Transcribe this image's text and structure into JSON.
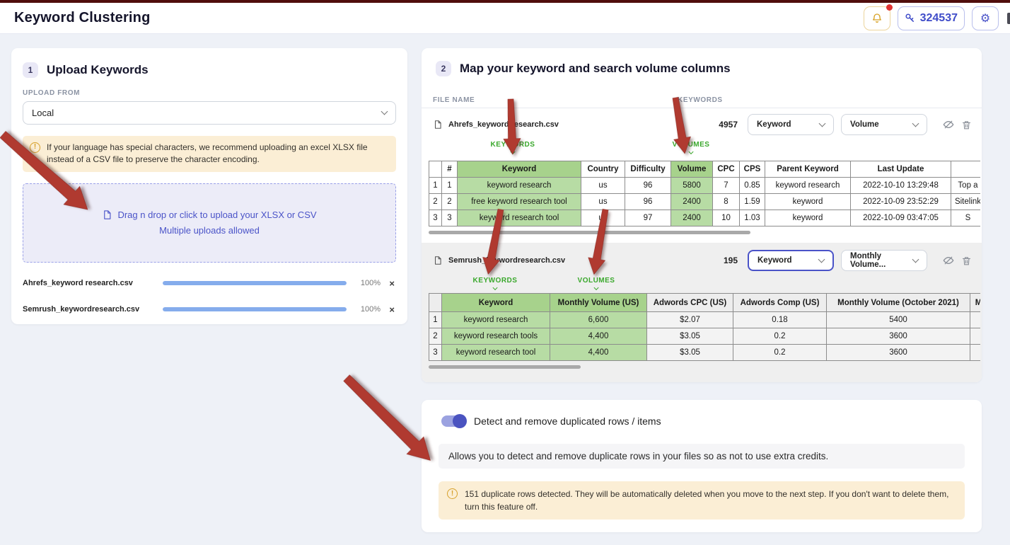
{
  "header": {
    "title": "Keyword Clustering",
    "credits_value": "324537",
    "bell_icon": "notification-bell",
    "key_icon": "credits-key",
    "gear_icon": "settings-gear"
  },
  "upload_panel": {
    "step_number": "1",
    "title": "Upload Keywords",
    "upload_from_label": "UPLOAD FROM",
    "source_select_value": "Local",
    "encoding_notice": "If your language has special characters, we recommend uploading an excel XLSX file instead of a CSV file to preserve the character encoding.",
    "dropzone_line1": "Drag n drop or click to upload your XLSX or CSV",
    "dropzone_line2": "Multiple uploads allowed",
    "uploads": [
      {
        "name": "Ahrefs_keyword research.csv",
        "progress": "100%",
        "close_label": "×"
      },
      {
        "name": "Semrush_keywordresearch.csv",
        "progress": "100%",
        "close_label": "×"
      }
    ]
  },
  "mapping_panel": {
    "step_number": "2",
    "title": "Map your keyword and search volume columns",
    "file_name_label": "FILE NAME",
    "keywords_label": "KEYWORDS",
    "files": [
      {
        "name": "Ahrefs_keyword research.csv",
        "count": "4957",
        "keyword_select": "Keyword",
        "volume_select": "Volume",
        "keywords_tag": "KEYWORDS",
        "volumes_tag": "VOLUMES",
        "table": {
          "headers": [
            "",
            "#",
            "Keyword",
            "Country",
            "Difficulty",
            "Volume",
            "CPC",
            "CPS",
            "Parent Keyword",
            "Last Update",
            ""
          ],
          "highlight_cols": [
            2,
            5
          ],
          "rows": [
            [
              "1",
              "1",
              "keyword research",
              "us",
              "96",
              "5800",
              "7",
              "0.85",
              "keyword research",
              "2022-10-10 13:29:48",
              "Top a"
            ],
            [
              "2",
              "2",
              "free keyword research tool",
              "us",
              "96",
              "2400",
              "8",
              "1.59",
              "keyword",
              "2022-10-09 23:52:29",
              "Sitelink"
            ],
            [
              "3",
              "3",
              "keyword research tool",
              "us",
              "97",
              "2400",
              "10",
              "1.03",
              "keyword",
              "2022-10-09 03:47:05",
              "S"
            ]
          ]
        }
      },
      {
        "name": "Semrush_keywordresearch.csv",
        "count": "195",
        "keyword_select": "Keyword",
        "volume_select": "Monthly Volume...",
        "keywords_tag": "KEYWORDS",
        "volumes_tag": "VOLUMES",
        "table": {
          "headers": [
            "",
            "Keyword",
            "Monthly Volume (US)",
            "Adwords CPC (US)",
            "Adwords Comp (US)",
            "Monthly Volume (October 2021)",
            "M"
          ],
          "highlight_cols": [
            1,
            2
          ],
          "rows": [
            [
              "1",
              "keyword research",
              "6,600",
              "$2.07",
              "0.18",
              "5400",
              ""
            ],
            [
              "2",
              "keyword research tools",
              "4,400",
              "$3.05",
              "0.2",
              "3600",
              ""
            ],
            [
              "3",
              "keyword research tool",
              "4,400",
              "$3.05",
              "0.2",
              "3600",
              ""
            ]
          ]
        }
      }
    ]
  },
  "dedupe_panel": {
    "toggle_label": "Detect and remove duplicated rows / items",
    "toggle_state": "on",
    "description": "Allows you to detect and remove duplicate rows in your files so as not to use extra credits.",
    "warning": "151 duplicate rows detected. They will be automatically deleted when you move to the next step. If you don't want to delete them, turn this feature off."
  },
  "colors": {
    "accent_indigo": "#4a53c8",
    "green_highlight_cell": "#b7dca4",
    "green_highlight_header": "#a7d28c",
    "green_label": "#3aa82c",
    "arrow_red": "#b03a30",
    "amber": "#d7a123",
    "notice_bg": "#fbeed5",
    "progress_blue": "#85acec",
    "topbar_red": "#500e0c"
  }
}
